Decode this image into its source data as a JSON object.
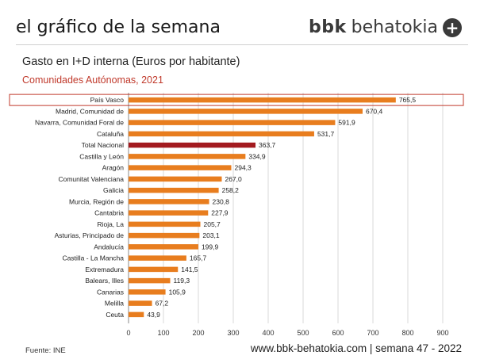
{
  "header": {
    "title": "el gráfico de la semana",
    "brand_bold": "bbk",
    "brand_rest": "behatokia",
    "brand_icon": "plus-icon"
  },
  "footer": {
    "source": "Fuente: INE",
    "url": "www.bbk-behatokia.com | semana 47 - 2022"
  },
  "colors": {
    "bar": "#e87d1e",
    "highlight_bar": "#a31a1f",
    "highlight_box": "#c0392b",
    "grid": "#d9d9d9",
    "axis": "#888888"
  },
  "chart_data": {
    "type": "bar",
    "orientation": "horizontal",
    "title": "Gasto en I+D interna (Euros por habitante)",
    "subtitle": "Comunidades Autónomas, 2021",
    "categories": [
      "País Vasco",
      "Madrid, Comunidad de",
      "Navarra, Comunidad Foral de",
      "Cataluña",
      "Total Nacional",
      "Castilla y León",
      "Aragón",
      "Comunitat Valenciana",
      "Galicia",
      "Murcia, Región de",
      "Cantabria",
      "Rioja, La",
      "Asturias, Principado de",
      "Andalucía",
      "Castilla - La Mancha",
      "Extremadura",
      "Balears, Illes",
      "Canarias",
      "Melilla",
      "Ceuta"
    ],
    "values": [
      765.5,
      670.4,
      591.9,
      531.7,
      363.7,
      334.9,
      294.3,
      267.0,
      258.2,
      230.8,
      227.9,
      205.7,
      203.1,
      199.9,
      165.7,
      141.5,
      119.3,
      105.9,
      67.2,
      43.9
    ],
    "value_labels": [
      "765,5",
      "670,4",
      "591,9",
      "531,7",
      "363,7",
      "334,9",
      "294,3",
      "267,0",
      "258,2",
      "230,8",
      "227,9",
      "205,7",
      "203,1",
      "199,9",
      "165,7",
      "141,5",
      "119,3",
      "105,9",
      "67,2",
      "43,9"
    ],
    "highlight_bar": "Total Nacional",
    "boxed_category": "País Vasco",
    "xlim": [
      0,
      900
    ],
    "xticks": [
      0,
      100,
      200,
      300,
      400,
      500,
      600,
      700,
      800,
      900
    ],
    "grid": true,
    "legend": "none"
  }
}
